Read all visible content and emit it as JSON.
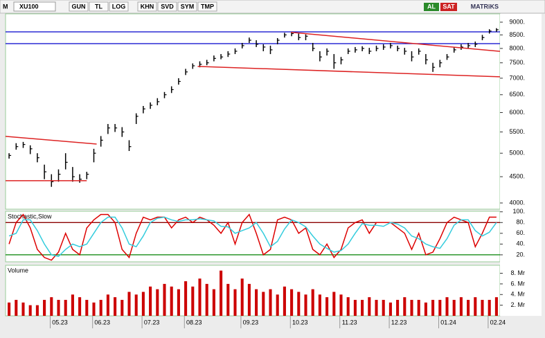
{
  "toolbar": {
    "logo": "M",
    "symbol": "XU100",
    "buttons": [
      "GUN",
      "TL",
      "LOG",
      "KHN",
      "SVD",
      "SYM",
      "TMP"
    ],
    "buy": "AL",
    "sell": "SAT",
    "brand": "MATRiKS"
  },
  "chart_data": [
    {
      "type": "ohlc",
      "log_scale": true,
      "color": "#000000",
      "ylim": [
        3890,
        9342
      ],
      "yticks": [
        {
          "value": 4000,
          "label": "4000."
        },
        {
          "value": 4500,
          "label": "4500."
        },
        {
          "value": 5000,
          "label": "5000."
        },
        {
          "value": 5500,
          "label": "5500."
        },
        {
          "value": 6000,
          "label": "6000."
        },
        {
          "value": 6500,
          "label": "6500."
        },
        {
          "value": 7000,
          "label": "7000."
        },
        {
          "value": 7500,
          "label": "7500."
        },
        {
          "value": 8000,
          "label": "8000."
        },
        {
          "value": 8500,
          "label": "8500."
        },
        {
          "value": 9000,
          "label": "9000."
        }
      ],
      "high": [
        5000,
        5230,
        5260,
        5180,
        5000,
        4750,
        4550,
        4650,
        5000,
        4700,
        4550,
        4600,
        5100,
        5400,
        5700,
        5700,
        5620,
        5300,
        5980,
        6180,
        6280,
        6400,
        6580,
        6750,
        7000,
        7300,
        7480,
        7550,
        7600,
        7750,
        7800,
        7900,
        8000,
        8200,
        8400,
        8300,
        8150,
        8100,
        8380,
        8580,
        8620,
        8550,
        8520,
        8200,
        7900,
        8000,
        7800,
        7700,
        8000,
        8050,
        8080,
        8020,
        8100,
        8150,
        8200,
        8100,
        8020,
        7900,
        8000,
        7800,
        7500,
        7600,
        7800,
        8050,
        8150,
        8200,
        8250,
        8500,
        8720,
        8760
      ],
      "low": [
        4880,
        5080,
        5120,
        4980,
        4800,
        4450,
        4300,
        4400,
        4650,
        4400,
        4380,
        4450,
        4800,
        5150,
        5450,
        5500,
        5380,
        5050,
        5700,
        5980,
        6100,
        6200,
        6400,
        6550,
        6800,
        7100,
        7300,
        7350,
        7420,
        7550,
        7620,
        7700,
        7800,
        8000,
        8200,
        8050,
        7900,
        7800,
        8150,
        8400,
        8450,
        8300,
        8300,
        7900,
        7550,
        7750,
        7300,
        7450,
        7800,
        7850,
        7900,
        7800,
        7900,
        7950,
        8000,
        7900,
        7780,
        7550,
        7780,
        7450,
        7200,
        7350,
        7600,
        7850,
        7950,
        8000,
        8050,
        8300,
        8550,
        8620
      ],
      "close": [
        4950,
        5150,
        5200,
        5100,
        4900,
        4600,
        4400,
        4550,
        4800,
        4500,
        4450,
        4550,
        5000,
        5300,
        5600,
        5600,
        5500,
        5150,
        5900,
        6100,
        6200,
        6300,
        6500,
        6650,
        6900,
        7200,
        7400,
        7450,
        7500,
        7650,
        7700,
        7800,
        7900,
        8100,
        8300,
        8150,
        8050,
        7950,
        8300,
        8500,
        8550,
        8400,
        8450,
        8000,
        7700,
        7900,
        7500,
        7600,
        7900,
        7950,
        8000,
        7900,
        8000,
        8050,
        8100,
        8000,
        7900,
        7700,
        7900,
        7600,
        7350,
        7500,
        7700,
        7950,
        8050,
        8100,
        8150,
        8400,
        8650,
        8700
      ],
      "levels": [
        {
          "value": 8617,
          "color": "#0000cc"
        },
        {
          "value": 8174,
          "color": "#0000cc"
        }
      ],
      "trend_lines": [
        {
          "from": {
            "index": -0.5,
            "value": 5392
          },
          "to": {
            "index": 12.4,
            "value": 5210
          },
          "color": "#dd2222"
        },
        {
          "from": {
            "index": -0.5,
            "value": 4420
          },
          "to": {
            "index": 11,
            "value": 4420
          },
          "color": "#dd2222"
        },
        {
          "from": {
            "index": 26.7,
            "value": 7380
          },
          "to": {
            "index": 69.5,
            "value": 7044
          },
          "color": "#dd2222"
        },
        {
          "from": {
            "index": 39.9,
            "value": 8600
          },
          "to": {
            "index": 69.5,
            "value": 7895
          },
          "color": "#dd2222"
        }
      ]
    },
    {
      "type": "line",
      "title": "Stochastic,Slow",
      "ylim": [
        7,
        101
      ],
      "yticks": [
        {
          "value": 20,
          "label": "20."
        },
        {
          "value": 40,
          "label": "40."
        },
        {
          "value": 60,
          "label": "60."
        },
        {
          "value": 80,
          "label": "80."
        },
        {
          "value": 100,
          "label": "100."
        }
      ],
      "levels": [
        {
          "value": 80,
          "color": "#8b0000"
        },
        {
          "value": 20,
          "color": "#008000"
        }
      ],
      "series": [
        {
          "color": "#dd0000",
          "values": [
            40,
            80,
            95,
            70,
            30,
            15,
            10,
            25,
            60,
            30,
            20,
            70,
            85,
            95,
            95,
            80,
            30,
            15,
            60,
            90,
            85,
            90,
            90,
            70,
            85,
            90,
            80,
            90,
            85,
            75,
            60,
            80,
            40,
            80,
            95,
            60,
            20,
            30,
            85,
            90,
            85,
            60,
            70,
            30,
            20,
            40,
            15,
            30,
            70,
            80,
            85,
            60,
            80,
            80,
            80,
            70,
            60,
            30,
            60,
            20,
            25,
            50,
            80,
            90,
            85,
            80,
            35,
            60,
            90,
            90
          ]
        },
        {
          "color": "#33ccdd",
          "values": [
            55,
            60,
            85,
            85,
            65,
            40,
            20,
            17,
            30,
            40,
            35,
            40,
            60,
            80,
            90,
            90,
            70,
            40,
            35,
            55,
            80,
            88,
            90,
            85,
            82,
            85,
            85,
            87,
            85,
            83,
            73,
            72,
            60,
            65,
            70,
            80,
            60,
            35,
            45,
            68,
            85,
            80,
            72,
            55,
            40,
            32,
            25,
            28,
            40,
            60,
            78,
            75,
            75,
            73,
            80,
            77,
            70,
            55,
            50,
            40,
            35,
            32,
            50,
            75,
            85,
            85,
            65,
            55,
            62,
            80
          ]
        }
      ]
    },
    {
      "type": "bar",
      "title": "Volume",
      "color": "#cc0000",
      "ylim": [
        0,
        9.5
      ],
      "yticks": [
        {
          "value": 2,
          "label": "2. Mr"
        },
        {
          "value": 4,
          "label": "4. Mr"
        },
        {
          "value": 6,
          "label": "6. Mr"
        },
        {
          "value": 8,
          "label": "8. Mr"
        }
      ],
      "categories": [
        null,
        null,
        null,
        null,
        null,
        null,
        null,
        "05.23",
        null,
        null,
        null,
        null,
        null,
        "06.23",
        null,
        null,
        null,
        null,
        null,
        null,
        "07.23",
        null,
        null,
        null,
        null,
        null,
        "08.23",
        null,
        null,
        null,
        null,
        null,
        null,
        null,
        "09.23",
        null,
        null,
        null,
        null,
        null,
        null,
        "10.23",
        null,
        null,
        null,
        null,
        null,
        null,
        "11.23",
        null,
        null,
        null,
        null,
        null,
        null,
        "12.23",
        null,
        null,
        null,
        null,
        null,
        null,
        "01.24",
        null,
        null,
        null,
        null,
        null,
        null,
        "02.24"
      ],
      "values": [
        2.5,
        3,
        2.5,
        2,
        2,
        3,
        3.5,
        3,
        3,
        4,
        3.5,
        3,
        2.5,
        3,
        4,
        3.5,
        3,
        4.5,
        4,
        4.5,
        5.5,
        5,
        6,
        5.5,
        5,
        6.5,
        5.5,
        7,
        6,
        5,
        8.5,
        6,
        5,
        7,
        6,
        5,
        4.5,
        5,
        4,
        5.5,
        5,
        4.5,
        4,
        5,
        4,
        3.5,
        4.5,
        4,
        3.5,
        3,
        3,
        3.5,
        3,
        3,
        2.5,
        3,
        3.5,
        3,
        3,
        2.5,
        3,
        3,
        3.5,
        3,
        3.5,
        3,
        3.5,
        3,
        3,
        3.5
      ]
    }
  ]
}
